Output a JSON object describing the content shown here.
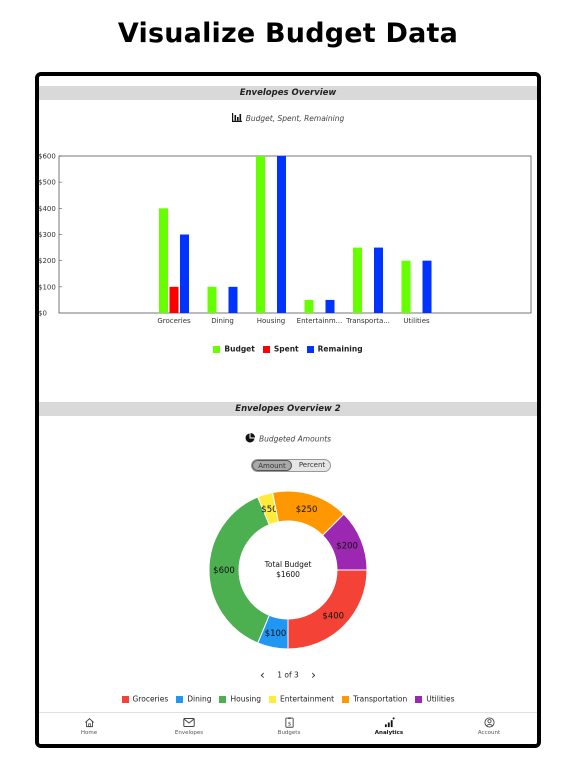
{
  "headline": "Visualize Budget Data",
  "section1": {
    "title": "Envelopes Overview",
    "subtitle": "Budget, Spent, Remaining",
    "subtitle_icon": "bar-chart-icon"
  },
  "bar_chart": {
    "chart_data": {
      "type": "bar",
      "categories": [
        "Groceries",
        "Dining",
        "Housing",
        "Entertainm...",
        "Transporta...",
        "Utilities"
      ],
      "series": [
        {
          "name": "Budget",
          "color": "#66ff00",
          "values": [
            400,
            100,
            600,
            50,
            250,
            200
          ]
        },
        {
          "name": "Spent",
          "color": "#ff0000",
          "values": [
            100,
            0,
            0,
            0,
            0,
            0
          ]
        },
        {
          "name": "Remaining",
          "color": "#0033ff",
          "values": [
            300,
            100,
            600,
            50,
            250,
            200
          ]
        }
      ],
      "yticks": [
        "$0",
        "$100",
        "$200",
        "$300",
        "$400",
        "$500",
        "$600"
      ],
      "ylim": [
        0,
        600
      ],
      "legend_position": "bottom"
    },
    "legend": [
      {
        "label": "Budget",
        "color": "#66ff00"
      },
      {
        "label": "Spent",
        "color": "#ff0000"
      },
      {
        "label": "Remaining",
        "color": "#0033ff"
      }
    ]
  },
  "section2": {
    "title": "Envelopes Overview 2",
    "subtitle": "Budgeted Amounts",
    "subtitle_icon": "pie-chart-icon",
    "toggle": {
      "selected": "Amount",
      "other": "Percent"
    }
  },
  "donut_chart": {
    "chart_data": {
      "type": "pie",
      "variant": "donut",
      "slices": [
        {
          "label": "Groceries",
          "value": 400,
          "display": "$400",
          "color": "#f44336"
        },
        {
          "label": "Dining",
          "value": 100,
          "display": "$100",
          "color": "#2196f3"
        },
        {
          "label": "Housing",
          "value": 600,
          "display": "$600",
          "color": "#4caf50"
        },
        {
          "label": "Entertainment",
          "value": 50,
          "display": "$50",
          "color": "#ffeb3b"
        },
        {
          "label": "Transportation",
          "value": 250,
          "display": "$250",
          "color": "#ff9800"
        },
        {
          "label": "Utilities",
          "value": 200,
          "display": "$200",
          "color": "#9c27b0"
        }
      ],
      "center_title": "Total Budget",
      "center_value": "$1600"
    }
  },
  "pager": {
    "text": "1 of 3"
  },
  "tabs": [
    {
      "label": "Home",
      "icon": "home-icon"
    },
    {
      "label": "Envelopes",
      "icon": "envelope-icon"
    },
    {
      "label": "Budgets",
      "icon": "budget-icon"
    },
    {
      "label": "Analytics",
      "icon": "analytics-icon",
      "active": true
    },
    {
      "label": "Account",
      "icon": "account-icon"
    }
  ]
}
